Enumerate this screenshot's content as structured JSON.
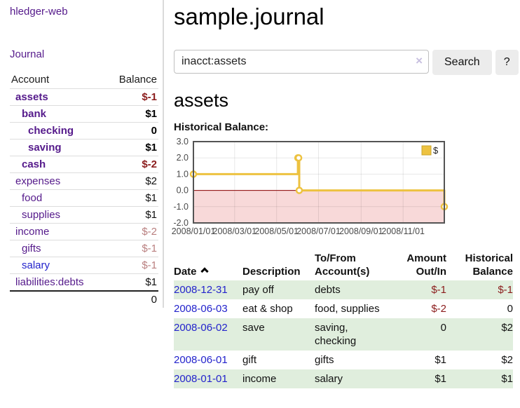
{
  "app": {
    "brand": "hledger-web",
    "nav_journal": "Journal"
  },
  "header": {
    "title": "sample.journal"
  },
  "search": {
    "value": "inacct:assets",
    "clear_icon": "×",
    "button_label": "Search",
    "help_label": "?"
  },
  "main": {
    "account_title": "assets",
    "chart_label": "Historical Balance:"
  },
  "colors": {
    "link_purple": "#551a8b",
    "link_blue": "#2323cc",
    "negative_strong": "#8b1c1c",
    "negative_muted": "#b97f7f",
    "row_shade_green": "#e0eedd",
    "button_bg": "#ececec",
    "series_yellow": "#EDC240"
  },
  "sidebar": {
    "headers": [
      "Account",
      "Balance"
    ],
    "rows": [
      {
        "account": "assets",
        "balance": "$-1",
        "depth": 1,
        "current": true
      },
      {
        "account": "bank",
        "balance": "$1",
        "depth": 2,
        "current": true
      },
      {
        "account": "checking",
        "balance": "0",
        "depth": 3,
        "current": true
      },
      {
        "account": "saving",
        "balance": "$1",
        "depth": 3,
        "current": true
      },
      {
        "account": "cash",
        "balance": "$-2",
        "depth": 2,
        "current": true
      },
      {
        "account": "expenses",
        "balance": "$2",
        "depth": 1,
        "current": false
      },
      {
        "account": "food",
        "balance": "$1",
        "depth": 2,
        "current": false
      },
      {
        "account": "supplies",
        "balance": "$1",
        "depth": 2,
        "current": false
      },
      {
        "account": "income",
        "balance": "$-2",
        "depth": 1,
        "current": false
      },
      {
        "account": "gifts",
        "balance": "$-1",
        "depth": 2,
        "current": false
      },
      {
        "account": "salary",
        "balance": "$-1",
        "depth": 2,
        "current": false,
        "blue": true
      },
      {
        "account": "liabilities:debts",
        "balance": "$1",
        "depth": 1,
        "current": false
      }
    ],
    "total": "0"
  },
  "chart_data": {
    "type": "line",
    "step": true,
    "title": "Historical Balance:",
    "series": [
      {
        "name": "$",
        "color": "#EDC240",
        "points": [
          {
            "x": "2008-01-01",
            "y": 1
          },
          {
            "x": "2008-06-01",
            "y": 2
          },
          {
            "x": "2008-06-02",
            "y": 2
          },
          {
            "x": "2008-06-03",
            "y": 0
          },
          {
            "x": "2008-12-31",
            "y": -1
          }
        ]
      }
    ],
    "x_ticks": [
      "2008/01/01",
      "2008/03/01",
      "2008/05/01",
      "2008/07/01",
      "2008/09/01",
      "2008/11/01"
    ],
    "y_ticks": [
      "3.0",
      "2.0",
      "1.0",
      "0.0",
      "-1.0",
      "-2.0"
    ],
    "xlim": [
      "2008-01-01",
      "2008-12-31"
    ],
    "ylim": [
      -2,
      3
    ],
    "grid": true,
    "legend_position": "top-right",
    "frame_color": "#545454",
    "negative_region_color": "#f8d9d9",
    "zero_line_color": "#8b0000",
    "legend_border": "#c9a42c",
    "tick_label_color": "#4a4a4a"
  },
  "register": {
    "headers": [
      {
        "line1": "Date",
        "line2": "",
        "sort": "asc"
      },
      {
        "line1": "Description",
        "line2": ""
      },
      {
        "line1": "To/From",
        "line2": "Account(s)"
      },
      {
        "line1": "Amount",
        "line2": "Out/In",
        "align": "right"
      },
      {
        "line1": "Historical",
        "line2": "Balance",
        "align": "right"
      }
    ],
    "rows": [
      {
        "date": "2008-12-31",
        "description": "pay off",
        "accounts": "debts",
        "amount": "$-1",
        "balance": "$-1"
      },
      {
        "date": "2008-06-03",
        "description": "eat & shop",
        "accounts": "food, supplies",
        "amount": "$-2",
        "balance": "0"
      },
      {
        "date": "2008-06-02",
        "description": "save",
        "accounts": "saving, checking",
        "amount": "0",
        "balance": "$2"
      },
      {
        "date": "2008-06-01",
        "description": "gift",
        "accounts": "gifts",
        "amount": "$1",
        "balance": "$2"
      },
      {
        "date": "2008-01-01",
        "description": "income",
        "accounts": "salary",
        "amount": "$1",
        "balance": "$1"
      }
    ]
  }
}
